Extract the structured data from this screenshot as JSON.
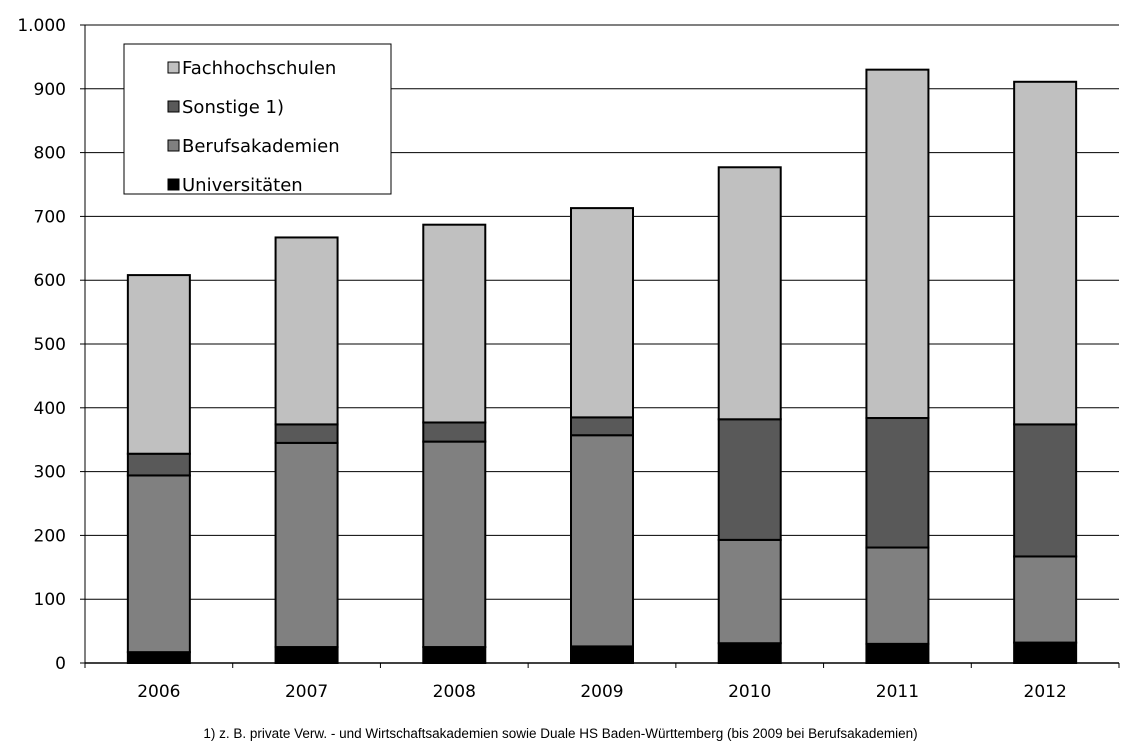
{
  "chart_data": {
    "type": "bar",
    "stacked": true,
    "categories": [
      "2006",
      "2007",
      "2008",
      "2009",
      "2010",
      "2011",
      "2012"
    ],
    "series": [
      {
        "name": "Universitäten",
        "color": "#000000",
        "values": [
          17,
          25,
          25,
          26,
          31,
          30,
          32
        ]
      },
      {
        "name": "Berufsakademien",
        "color": "#808080",
        "values": [
          277,
          320,
          322,
          331,
          162,
          151,
          135
        ]
      },
      {
        "name": "Sonstige 1)",
        "color": "#595959",
        "values": [
          34,
          29,
          30,
          28,
          189,
          203,
          207
        ]
      },
      {
        "name": "Fachhochschulen",
        "color": "#c0c0c0",
        "values": [
          280,
          293,
          310,
          328,
          395,
          546,
          537
        ]
      }
    ],
    "ylim": [
      0,
      1000
    ],
    "yticks": [
      0,
      100,
      200,
      300,
      400,
      500,
      600,
      700,
      800,
      900,
      1000
    ],
    "ytick_labels": [
      "0",
      "100",
      "200",
      "300",
      "400",
      "500",
      "600",
      "700",
      "800",
      "900",
      "1.000"
    ],
    "grid": true,
    "legend": {
      "position": "top-left",
      "order": [
        "Fachhochschulen",
        "Sonstige 1)",
        "Berufsakademien",
        "Universitäten"
      ]
    },
    "footnote": "1) z. B. private Verw. - und Wirtschaftsakademien sowie Duale HS Baden-Württemberg  (bis 2009 bei Berufsakademien)"
  }
}
